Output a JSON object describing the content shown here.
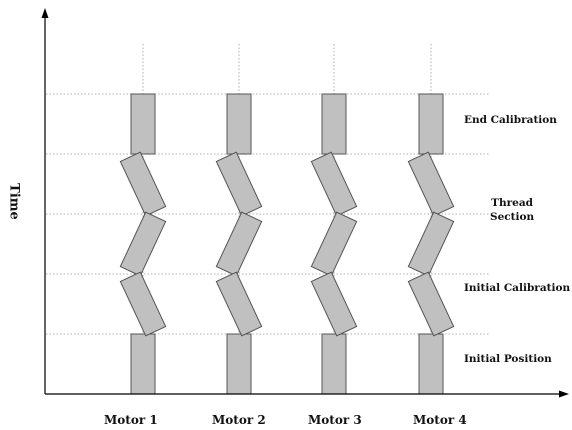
{
  "axis": {
    "y_title": "Time"
  },
  "motors": [
    {
      "label": "Motor 1"
    },
    {
      "label": "Motor 2"
    },
    {
      "label": "Motor 3"
    },
    {
      "label": "Motor 4"
    }
  ],
  "phases": [
    {
      "id": "end-calibration",
      "label": "End Calibration"
    },
    {
      "id": "thread-section",
      "label": "Thread\nSection"
    },
    {
      "id": "initial-calibration",
      "label": "Initial Calibration"
    },
    {
      "id": "initial-position",
      "label": "Initial Position"
    }
  ],
  "colors": {
    "block_fill": "#c0c0c0",
    "block_stroke": "#555555",
    "guide": "#9a9a9a",
    "axis": "#000000"
  }
}
